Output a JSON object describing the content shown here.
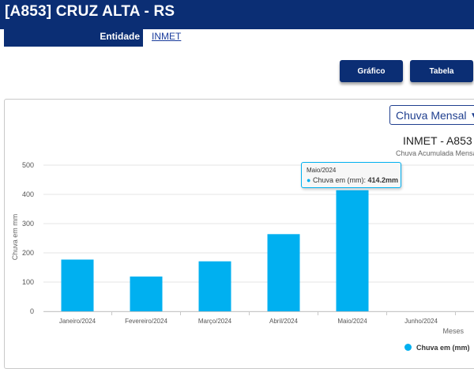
{
  "header": {
    "station_title": "[A853] CRUZ ALTA - RS"
  },
  "entity": {
    "label": "Entidade",
    "value": "INMET"
  },
  "buttons": {
    "grafico": "Gráfico",
    "tabela": "Tabela"
  },
  "select": {
    "selected": "Chuva Mensal"
  },
  "colors": {
    "primary": "#0b2e74",
    "bar": "#00b0f0"
  },
  "chart_data": {
    "type": "bar",
    "title": "INMET - A853",
    "subtitle": "Chuva Acumulada Mensal",
    "xlabel": "Meses",
    "ylabel": "Chuva em mm",
    "ylim": [
      0,
      500
    ],
    "yticks": [
      0,
      100,
      200,
      300,
      400,
      500
    ],
    "categories": [
      "Janeiro/2024",
      "Fevereiro/2024",
      "Março/2024",
      "Abril/2024",
      "Maio/2024",
      "Junho/2024"
    ],
    "series": [
      {
        "name": "Chuva em (mm)",
        "values": [
          177,
          119,
          171,
          264,
          414.2,
          null
        ]
      }
    ],
    "legend": "bottom-right"
  },
  "tooltip": {
    "header": "Maio/2024",
    "label": "Chuva em (mm):",
    "value": "414.2mm"
  }
}
